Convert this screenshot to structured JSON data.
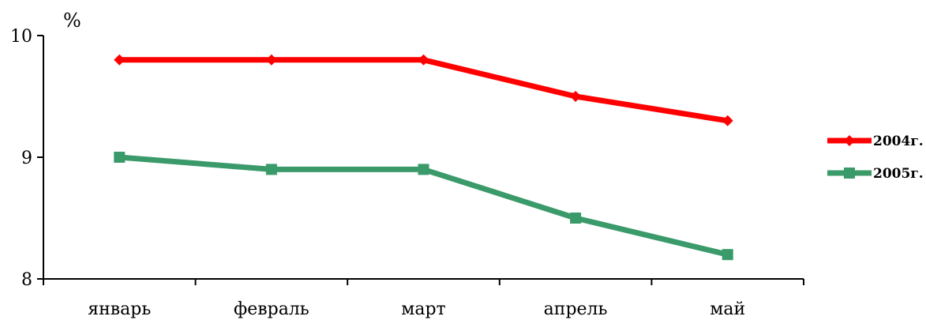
{
  "chart_data": {
    "type": "line",
    "unit_label": "%",
    "categories": [
      "январь",
      "февраль",
      "март",
      "апрель",
      "май"
    ],
    "ylim": [
      8,
      10
    ],
    "yticks": [
      8,
      9,
      10
    ],
    "grid": false,
    "legend_position": "right",
    "series": [
      {
        "name": "2004г.",
        "values": [
          9.8,
          9.8,
          9.8,
          9.5,
          9.3
        ],
        "color": "#ff0000",
        "marker": "diamond"
      },
      {
        "name": "2005г.",
        "values": [
          9.0,
          8.9,
          8.9,
          8.5,
          8.2
        ],
        "color": "#3a9a6a",
        "marker": "square"
      }
    ]
  }
}
